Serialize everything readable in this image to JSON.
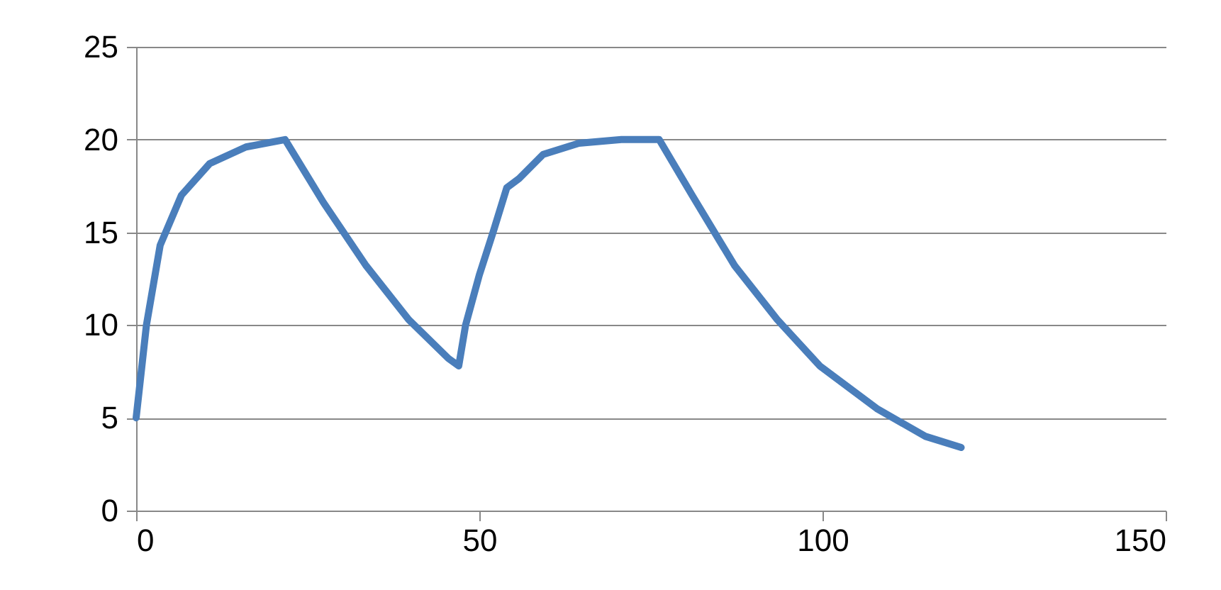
{
  "chart_data": {
    "type": "line",
    "xlim": [
      0,
      150
    ],
    "xticks": [
      0,
      50,
      100,
      150
    ],
    "ylim": [
      0,
      25
    ],
    "yticks": [
      0,
      5,
      10,
      15,
      20,
      25
    ],
    "grid": "y",
    "marker": "none",
    "line_style": "solid",
    "series": [
      {
        "color": "#4a7ebb",
        "x": [
          0,
          1.5,
          3.5,
          6.6,
          10.7,
          16,
          21.7,
          27.3,
          33.5,
          39.7,
          45.5,
          47,
          48,
          50,
          52,
          54,
          55.8,
          59.3,
          64.5,
          70.7,
          76.2,
          81,
          87.2,
          93.4,
          99.6,
          107.9,
          115,
          120.2
        ],
        "values": [
          5,
          10,
          14.3,
          17,
          18.7,
          19.6,
          20,
          16.6,
          13.2,
          10.3,
          8.2,
          7.8,
          10,
          12.7,
          15,
          17.4,
          17.9,
          19.2,
          19.8,
          20,
          20,
          17,
          13.2,
          10.3,
          7.8,
          5.5,
          4,
          3.4
        ]
      }
    ]
  }
}
